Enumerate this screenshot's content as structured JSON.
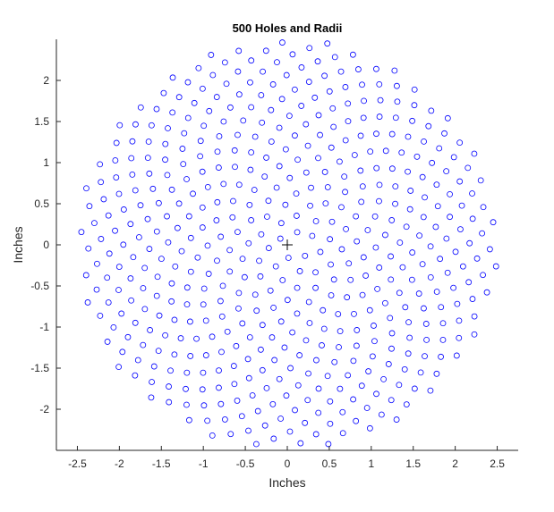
{
  "chart_data": {
    "type": "scatter",
    "title": "500 Holes and Radii",
    "xlabel": "Inches",
    "ylabel": "Inches",
    "xlim": [
      -2.75,
      2.75
    ],
    "ylim": [
      -2.5,
      2.5
    ],
    "xticks": [
      -2.5,
      -2,
      -1.5,
      -1,
      -0.5,
      0,
      0.5,
      1,
      1.5,
      2,
      2.5
    ],
    "xtick_labels": [
      "-2.5",
      "-2",
      "-1.5",
      "-1",
      "-0.5",
      "0",
      "0.5",
      "1",
      "1.5",
      "2",
      "2.5"
    ],
    "yticks": [
      -2,
      -1.5,
      -1,
      -0.5,
      0,
      0.5,
      1,
      1.5,
      2
    ],
    "ytick_labels": [
      "-2",
      "-1.5",
      "-1",
      "-0.5",
      "0",
      "0.5",
      "1",
      "1.5",
      "2"
    ],
    "grid": false,
    "marker": "circle-open",
    "marker_color": "#0000ff",
    "center_marker": "plus",
    "center_marker_color": "#000000",
    "center": [
      0,
      0
    ],
    "pattern": "phyllotaxis",
    "point_count": 500,
    "max_radius": 2.5,
    "divergence_angle_deg": 137.508
  }
}
